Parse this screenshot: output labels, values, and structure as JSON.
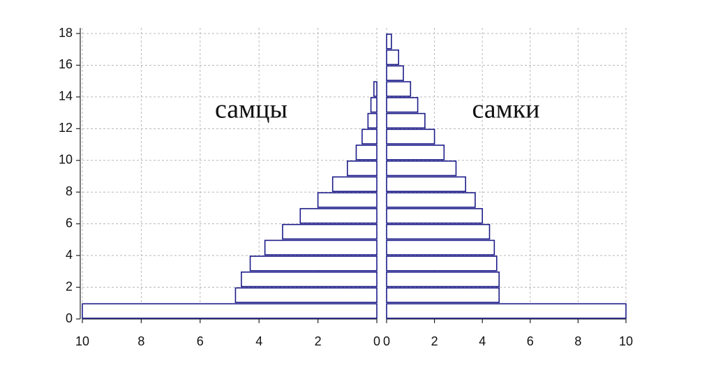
{
  "chart_data": {
    "type": "pyramid",
    "y": [
      0,
      1,
      2,
      3,
      4,
      5,
      6,
      7,
      8,
      9,
      10,
      11,
      12,
      13,
      14,
      15,
      16,
      17
    ],
    "series": [
      {
        "name": "самцы",
        "color": "#1c1c8a",
        "values": [
          10,
          4.8,
          4.6,
          4.3,
          3.8,
          3.2,
          2.6,
          2.0,
          1.5,
          1.0,
          0.7,
          0.5,
          0.3,
          0.2,
          0.1,
          0,
          0,
          0
        ]
      },
      {
        "name": "самки",
        "color": "#1c1c8a",
        "values": [
          10,
          4.7,
          4.7,
          4.6,
          4.5,
          4.3,
          4.0,
          3.7,
          3.3,
          2.9,
          2.4,
          2.0,
          1.6,
          1.3,
          1.0,
          0.7,
          0.5,
          0.2
        ]
      }
    ],
    "xlim": [
      0,
      10
    ],
    "xticks": [
      0,
      2,
      4,
      6,
      8,
      10
    ],
    "ylim": [
      0,
      18
    ],
    "yticks": [
      0,
      2,
      4,
      6,
      8,
      10,
      12,
      14,
      16,
      18
    ],
    "grid": true
  }
}
